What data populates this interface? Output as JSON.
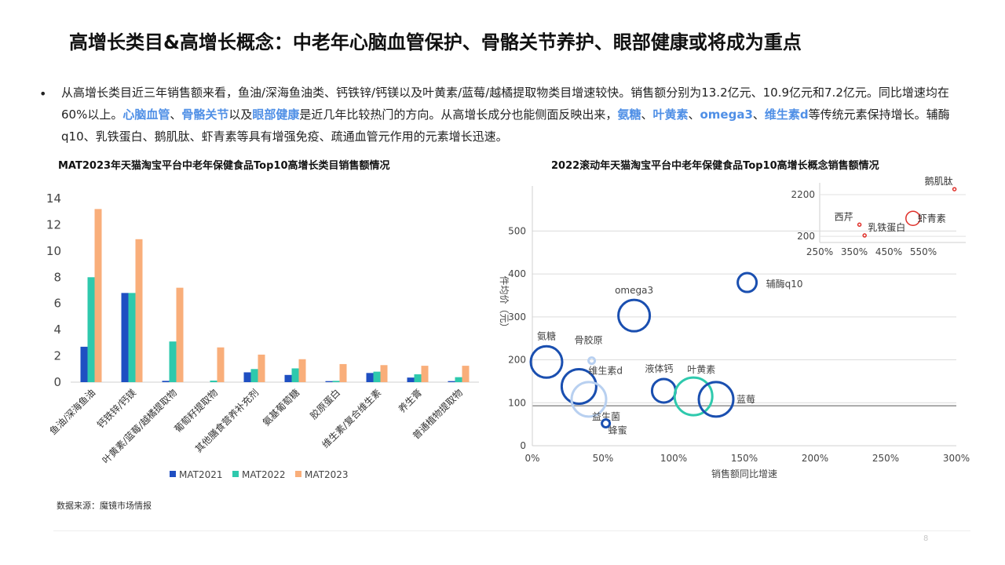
{
  "page": {
    "title": "高增长类目&高增长概念：中老年心脑血管保护、骨骼关节养护、眼部健康或将成为重点",
    "bullet": "•",
    "para": {
      "s1": "从高增长类目近三年销售额来看，鱼油/深海鱼油类、钙铁锌/钙镁以及叶黄素/蓝莓/越橘提取物类目增速较快。销售额分别为13.2亿元、10.9亿元和7.2亿元。同比增速均在60%以上。",
      "h1": "心脑血管",
      "s2": "、",
      "h2": "骨骼关节",
      "s3": "以及",
      "h3": "眼部健康",
      "s4": "是近几年比较热门的方向。从高增长成分也能侧面反映出来，",
      "h4": "氨糖",
      "s5": "、",
      "h5": "叶黄素",
      "s6": "、",
      "h6": "omega3",
      "s7": "、",
      "h7": "维生素d",
      "s8": "等传统元素保持增长。辅酶q10、乳铁蛋白、鹅肌肽、虾青素等具有增强免疫、疏通血管元作用的元素增长迅速。"
    },
    "source": "数据来源：魔镜市场情报",
    "page_number": "8"
  },
  "colors": {
    "mat2021": "#1f4fc2",
    "mat2022": "#2ec9ad",
    "mat2023": "#f9ae7a",
    "bubble_dark": "#1a4fb0",
    "bubble_teal": "#2ec9ad",
    "bubble_light": "#b8d0f0",
    "inset_red": "#e0302a",
    "highlight": "#4f8fe6"
  },
  "chart_data": [
    {
      "type": "bar",
      "title": "MAT2023年天猫淘宝平台中老年保健食品Top10高增长类目销售额情况",
      "categories": [
        "鱼油/深海鱼油",
        "钙铁锌/钙镁",
        "叶黄素/蓝莓/越橘提取物",
        "葡萄籽提取物",
        "其他膳食营养补充剂",
        "氨基葡萄糖",
        "胶原蛋白",
        "维生素/复合维生素",
        "养生膏",
        "普通植物提取物"
      ],
      "series": [
        {
          "name": "MAT2021",
          "values": [
            2.7,
            6.8,
            0.1,
            0.0,
            0.75,
            0.55,
            0.08,
            0.7,
            0.35,
            0.08
          ]
        },
        {
          "name": "MAT2022",
          "values": [
            8.0,
            6.8,
            3.1,
            0.12,
            1.0,
            1.05,
            0.1,
            0.8,
            0.6,
            0.38
          ]
        },
        {
          "name": "MAT2023",
          "values": [
            13.2,
            10.9,
            7.2,
            2.65,
            2.1,
            1.75,
            1.38,
            1.3,
            1.25,
            1.25
          ]
        }
      ],
      "ylim": [
        0,
        14
      ],
      "yticks": [
        "0",
        "2",
        "4",
        "6",
        "8",
        "10",
        "12",
        "14"
      ],
      "legend_position": "bottom"
    },
    {
      "type": "scatter",
      "title": "2022滚动年天猫淘宝平台中老年保健食品Top10高增长概念销售额情况",
      "xlabel": "销售额同比增速",
      "ylabel": "件均价（元）",
      "xlim": [
        0,
        3.0
      ],
      "ylim": [
        0,
        550
      ],
      "xticks": [
        "0%",
        "50%",
        "100%",
        "150%",
        "200%",
        "250%",
        "300%"
      ],
      "yticks": [
        "0",
        "100",
        "200",
        "300",
        "400",
        "500"
      ],
      "grid": true,
      "points": [
        {
          "label": "辅酶q10",
          "x": 1.52,
          "y": 380,
          "style": "dark"
        },
        {
          "label": "omega3",
          "x": 0.72,
          "y": 303,
          "style": "dark"
        },
        {
          "label": "氨糖",
          "x": 0.1,
          "y": 195,
          "style": "dark"
        },
        {
          "label": "骨胶原",
          "x": 0.42,
          "y": 198,
          "style": "light"
        },
        {
          "label": "维生素d",
          "x": 0.33,
          "y": 138,
          "style": "dark"
        },
        {
          "label": "益生菌",
          "x": 0.4,
          "y": 108,
          "style": "light"
        },
        {
          "label": "液体钙",
          "x": 0.93,
          "y": 128,
          "style": "dark"
        },
        {
          "label": "叶黄素",
          "x": 1.14,
          "y": 115,
          "style": "teal"
        },
        {
          "label": "蓝莓",
          "x": 1.3,
          "y": 108,
          "style": "dark"
        },
        {
          "label": "蜂蜜",
          "x": 0.52,
          "y": 52,
          "style": "dark"
        }
      ],
      "inset": {
        "xticks": [
          "250%",
          "350%",
          "450%",
          "550%"
        ],
        "yticks": [
          "200",
          "2200"
        ],
        "points": [
          {
            "label": "鹅肌肽",
            "x": 6.4,
            "y": 3000
          },
          {
            "label": "虾青素",
            "x": 5.2,
            "y": 560
          },
          {
            "label": "乳铁蛋白",
            "x": 3.8,
            "y": 210
          },
          {
            "label": "西芹",
            "x": 3.65,
            "y": 390
          }
        ]
      }
    }
  ]
}
